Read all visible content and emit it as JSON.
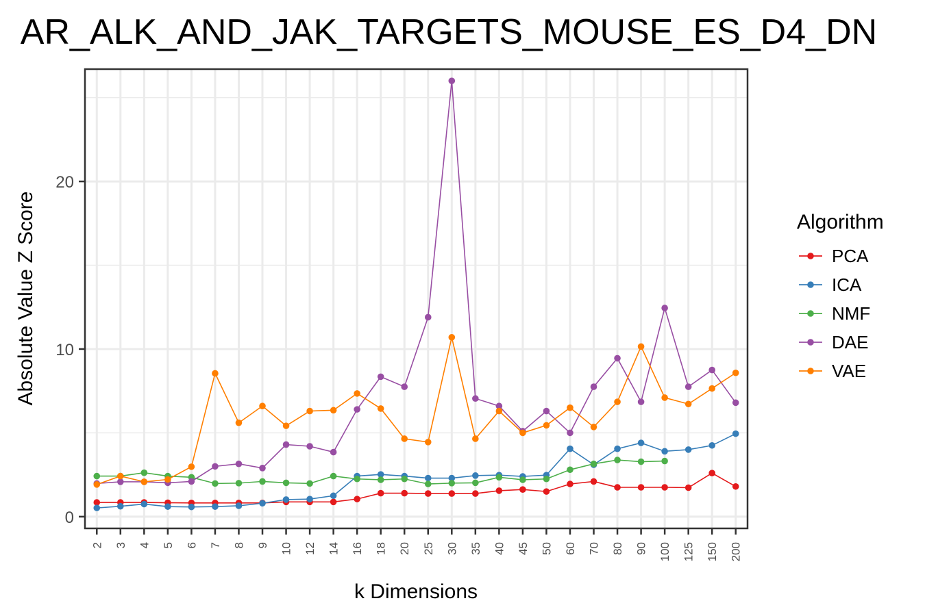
{
  "chart_data": {
    "type": "line",
    "title": "AR_ALK_AND_JAK_TARGETS_MOUSE_ES_D4_DN",
    "xlabel": "k Dimensions",
    "ylabel": "Absolute Value Z Score",
    "categories": [
      "2",
      "3",
      "4",
      "5",
      "6",
      "7",
      "8",
      "9",
      "10",
      "12",
      "14",
      "16",
      "18",
      "20",
      "25",
      "30",
      "35",
      "40",
      "45",
      "50",
      "60",
      "70",
      "80",
      "90",
      "100",
      "125",
      "150",
      "200"
    ],
    "ylim": [
      -0.7,
      26.7
    ],
    "yticks": [
      0,
      10,
      20
    ],
    "grid": true,
    "legend_position": "right",
    "legend_title": "Algorithm",
    "series": [
      {
        "name": "PCA",
        "color": "#e41a1c",
        "values": [
          0.85,
          0.85,
          0.85,
          0.83,
          0.82,
          0.82,
          0.82,
          0.82,
          0.88,
          0.88,
          0.88,
          1.05,
          1.4,
          1.4,
          1.38,
          1.38,
          1.38,
          1.55,
          1.62,
          1.5,
          1.95,
          2.1,
          1.75,
          1.75,
          1.75,
          1.73,
          2.6,
          1.8
        ]
      },
      {
        "name": "ICA",
        "color": "#377eb8",
        "values": [
          0.52,
          0.62,
          0.75,
          0.6,
          0.58,
          0.6,
          0.65,
          0.8,
          1.02,
          1.05,
          1.25,
          2.42,
          2.52,
          2.42,
          2.3,
          2.3,
          2.45,
          2.48,
          2.4,
          2.48,
          4.05,
          3.1,
          4.05,
          4.4,
          3.9,
          4.0,
          4.25,
          4.95
        ]
      },
      {
        "name": "NMF",
        "color": "#4daf4a",
        "values": [
          2.42,
          2.42,
          2.62,
          2.42,
          2.35,
          1.98,
          2.0,
          2.1,
          2.02,
          1.98,
          2.42,
          2.25,
          2.2,
          2.25,
          1.95,
          2.0,
          2.02,
          2.35,
          2.2,
          2.25,
          2.8,
          3.15,
          3.38,
          3.28,
          3.32,
          null,
          null,
          null
        ]
      },
      {
        "name": "DAE",
        "color": "#984ea3",
        "values": [
          1.98,
          2.08,
          2.08,
          2.02,
          2.1,
          3.0,
          3.15,
          2.9,
          4.3,
          4.2,
          3.85,
          6.4,
          8.35,
          7.75,
          11.9,
          26.0,
          7.05,
          6.6,
          5.1,
          6.3,
          5.0,
          7.75,
          9.45,
          6.85,
          12.45,
          7.75,
          8.75,
          6.8
        ]
      },
      {
        "name": "VAE",
        "color": "#ff7f00",
        "values": [
          1.92,
          2.42,
          2.08,
          2.22,
          2.98,
          8.55,
          5.6,
          6.6,
          5.42,
          6.3,
          6.35,
          7.35,
          6.45,
          4.65,
          4.45,
          10.7,
          4.65,
          6.3,
          5.0,
          5.45,
          6.5,
          5.35,
          6.85,
          10.15,
          7.1,
          6.72,
          7.65,
          8.58
        ]
      }
    ]
  }
}
